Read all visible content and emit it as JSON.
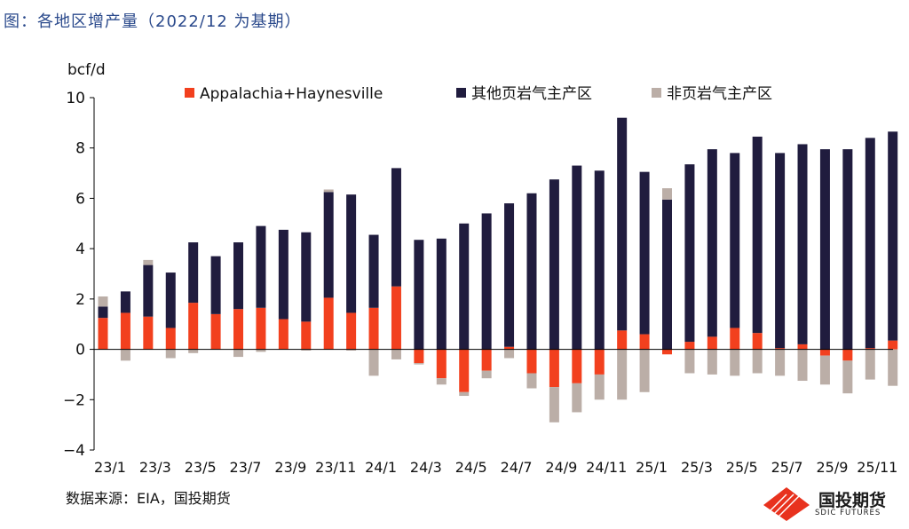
{
  "figure_title": "图：各地区增产量（2022/12 为基期）",
  "source_text": "数据来源：EIA，国投期货",
  "logo": {
    "cn": "国投期货",
    "en": "SDIC FUTURES"
  },
  "colors": {
    "app": "#f2401e",
    "other": "#201c3e",
    "nonshale": "#bbaea7",
    "axis": "#000000",
    "title": "#2b4a8c"
  },
  "chart_data": {
    "type": "bar",
    "stacked": true,
    "ylabel": "bcf/d",
    "ylim": [
      -4,
      10
    ],
    "yticks": [
      -4,
      -2,
      0,
      2,
      4,
      6,
      8,
      10
    ],
    "ytick_labels": [
      "−4",
      "−2",
      "0",
      "2",
      "4",
      "6",
      "8",
      "10"
    ],
    "legend_position": "top",
    "categories": [
      "23/1",
      "23/2",
      "23/3",
      "23/4",
      "23/5",
      "23/6",
      "23/7",
      "23/8",
      "23/9",
      "23/10",
      "23/11",
      "23/12",
      "24/1",
      "24/2",
      "24/3",
      "24/4",
      "24/5",
      "24/6",
      "24/7",
      "24/8",
      "24/9",
      "24/10",
      "24/11",
      "24/12",
      "25/1",
      "25/2",
      "25/3",
      "25/4",
      "25/5",
      "25/6",
      "25/7",
      "25/8",
      "25/9",
      "25/10",
      "25/11",
      "25/12"
    ],
    "xtick_labels": [
      "23/1",
      "",
      "23/3",
      "",
      "23/5",
      "",
      "23/7",
      "",
      "23/9",
      "",
      "23/11",
      "",
      "24/1",
      "",
      "24/3",
      "",
      "24/5",
      "",
      "24/7",
      "",
      "24/9",
      "",
      "24/11",
      "",
      "25/1",
      "",
      "25/3",
      "",
      "25/5",
      "",
      "25/7",
      "",
      "25/9",
      "",
      "25/11",
      ""
    ],
    "series": [
      {
        "name": "Appalachia+Haynesville",
        "values": [
          1.25,
          1.45,
          1.3,
          0.85,
          1.85,
          1.4,
          1.6,
          1.65,
          1.2,
          1.1,
          2.05,
          1.45,
          1.65,
          2.5,
          -0.55,
          -1.15,
          -1.7,
          -0.85,
          0.1,
          -0.95,
          -1.5,
          -1.35,
          -1.0,
          0.75,
          0.6,
          -0.2,
          0.3,
          0.5,
          0.85,
          0.65,
          0.05,
          0.2,
          -0.25,
          -0.45,
          0.05,
          0.35
        ]
      },
      {
        "name": "其他页岩气主产区",
        "values": [
          0.45,
          0.85,
          2.05,
          2.2,
          2.4,
          2.3,
          2.65,
          3.25,
          3.55,
          3.55,
          4.2,
          4.7,
          2.9,
          4.7,
          4.35,
          4.4,
          5.0,
          5.4,
          5.7,
          6.2,
          6.75,
          7.3,
          7.1,
          8.45,
          6.45,
          5.95,
          7.05,
          7.45,
          6.95,
          7.8,
          7.75,
          7.95,
          7.95,
          7.95,
          8.35,
          8.3
        ]
      },
      {
        "name": "非页岩气主产区",
        "values": [
          0.4,
          -0.45,
          0.2,
          -0.35,
          -0.15,
          0.0,
          -0.3,
          -0.1,
          0.0,
          -0.05,
          0.1,
          -0.05,
          -1.05,
          -0.4,
          -0.05,
          -0.25,
          -0.15,
          -0.3,
          -0.35,
          -0.6,
          -1.4,
          -1.15,
          -1.0,
          -2.0,
          -1.7,
          0.45,
          -0.95,
          -1.0,
          -1.05,
          -0.95,
          -1.05,
          -1.25,
          -1.15,
          -1.3,
          -1.2,
          -1.45
        ]
      }
    ]
  }
}
